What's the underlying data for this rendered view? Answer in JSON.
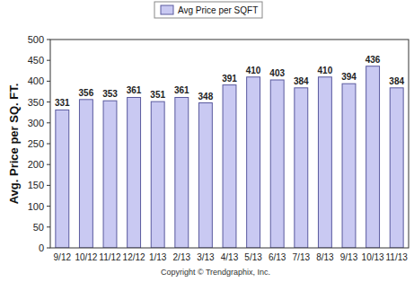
{
  "chart_data": {
    "type": "bar",
    "y_label": "Avg. Price per SQ. FT.",
    "categories": [
      "9/12",
      "10/12",
      "11/12",
      "12/12",
      "1/13",
      "2/13",
      "3/13",
      "4/13",
      "5/13",
      "6/13",
      "7/13",
      "8/13",
      "9/13",
      "10/13",
      "11/13"
    ],
    "series": [
      {
        "name": "Avg Price per SQFT",
        "color": "#c9c9f2",
        "values": [
          331,
          356,
          353,
          361,
          351,
          361,
          348,
          391,
          410,
          403,
          384,
          410,
          394,
          436,
          384
        ]
      }
    ],
    "ylim": [
      0,
      500
    ],
    "yticks": [
      0,
      50,
      100,
      150,
      200,
      250,
      300,
      350,
      400,
      450,
      500
    ],
    "grid": false,
    "legend": "top",
    "data_labels": true,
    "annotations": [
      "Copyright © Trendgraphix, Inc."
    ]
  }
}
